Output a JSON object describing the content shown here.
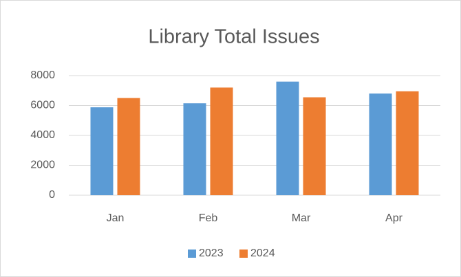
{
  "chart_data": {
    "type": "bar",
    "title": "Library Total Issues",
    "categories": [
      "Jan",
      "Feb",
      "Mar",
      "Apr"
    ],
    "series": [
      {
        "name": "2023",
        "color": "#5b9bd5",
        "values": [
          5880,
          6150,
          7600,
          6800
        ]
      },
      {
        "name": "2024",
        "color": "#ed7d31",
        "values": [
          6500,
          7200,
          6550,
          6950
        ]
      }
    ],
    "ylim": [
      0,
      8000
    ],
    "yticks": [
      0,
      2000,
      4000,
      6000,
      8000
    ],
    "grid": true,
    "legend": "bottom"
  }
}
